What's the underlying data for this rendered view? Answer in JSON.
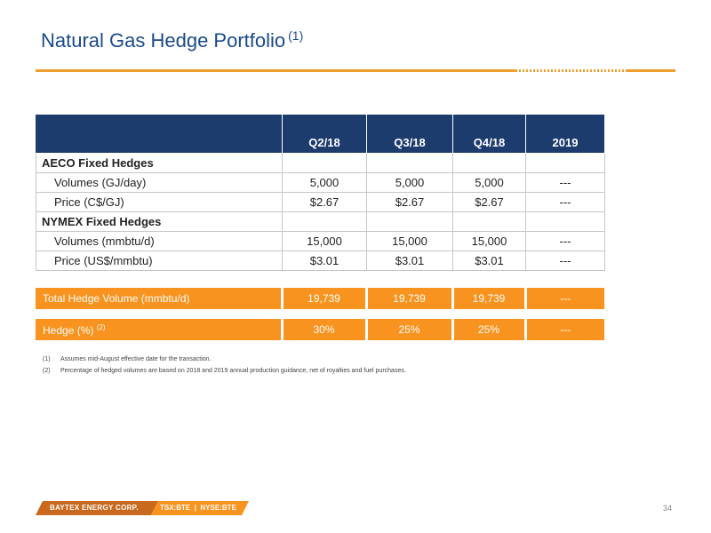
{
  "title": "Natural Gas Hedge Portfolio",
  "title_note": "(1)",
  "colors": {
    "navy": "#1d3c6e",
    "orange": "#f7931e",
    "rule": "#f0a030",
    "title": "#1a4a8a"
  },
  "table": {
    "headers": [
      "",
      "Q2/18",
      "Q3/18",
      "Q4/18",
      "2019"
    ],
    "sections": [
      {
        "name": "AECO Fixed Hedges",
        "rows": [
          {
            "label": "Volumes (GJ/day)",
            "values": [
              "5,000",
              "5,000",
              "5,000",
              "---"
            ]
          },
          {
            "label": "Price (C$/GJ)",
            "values": [
              "$2.67",
              "$2.67",
              "$2.67",
              "---"
            ]
          }
        ]
      },
      {
        "name": "NYMEX Fixed Hedges",
        "rows": [
          {
            "label": "Volumes (mmbtu/d)",
            "values": [
              "15,000",
              "15,000",
              "15,000",
              "---"
            ]
          },
          {
            "label": "Price (US$/mmbtu)",
            "values": [
              "$3.01",
              "$3.01",
              "$3.01",
              "---"
            ]
          }
        ]
      }
    ]
  },
  "totals": [
    {
      "label": "Total Hedge Volume (mmbtu/d)",
      "note": "",
      "values": [
        "19,739",
        "19,739",
        "19,739",
        "---"
      ]
    },
    {
      "label": "Hedge (%)",
      "note": "(2)",
      "values": [
        "30%",
        "25%",
        "25%",
        "---"
      ]
    }
  ],
  "footnotes": [
    {
      "num": "(1)",
      "text": "Assumes mid-August effective date for the transaction."
    },
    {
      "num": "(2)",
      "text": "Percentage of hedged volumes are based on 2018 and 2019 annual production guidance, net of royalties and fuel purchases."
    }
  ],
  "footer": {
    "company": "BAYTEX ENERGY CORP.",
    "tsx": "TSX:BTE",
    "separator": "|",
    "nyse": "NYSE:BTE",
    "page": "34"
  }
}
